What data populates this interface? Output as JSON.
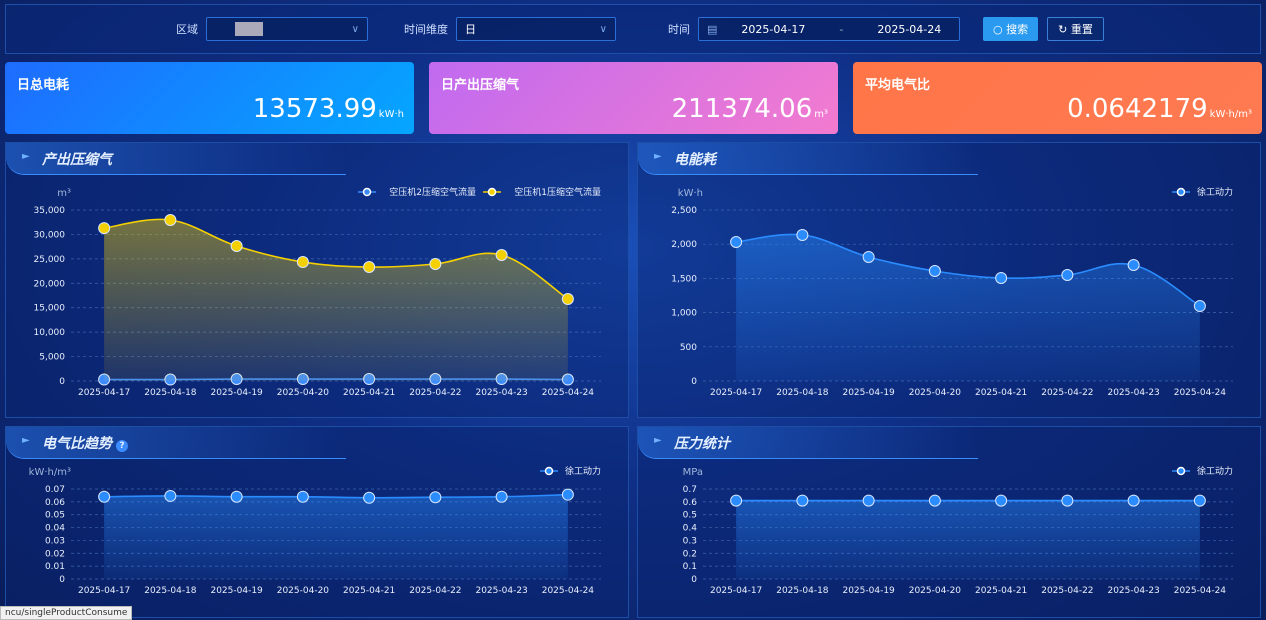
{
  "filters": {
    "region_label": "区域",
    "time_dim_label": "时间维度",
    "time_dim_value": "日",
    "time_label": "时间",
    "date_start": "2025-04-17",
    "date_sep": "-",
    "date_end": "2025-04-24",
    "search_label": "搜索",
    "reset_label": "重置"
  },
  "kpis": [
    {
      "title": "日总电耗",
      "value": "13573.99",
      "unit": "kW·h"
    },
    {
      "title": "日产出压缩气",
      "value": "211374.06",
      "unit": "m³"
    },
    {
      "title": "平均电气比",
      "value": "0.0642179",
      "unit": "kW·h/m³"
    }
  ],
  "status_text": "ncu/singleProductConsume",
  "chart_data": [
    {
      "title": "产出压缩气",
      "type": "line",
      "ylabel": "m³",
      "ylim": [
        0,
        35000
      ],
      "yticks": [
        "0",
        "5,000",
        "10,000",
        "15,000",
        "20,000",
        "25,000",
        "30,000",
        "35,000"
      ],
      "grid": true,
      "legend": "top-right",
      "categories": [
        "2025-04-17",
        "2025-04-18",
        "2025-04-19",
        "2025-04-20",
        "2025-04-21",
        "2025-04-22",
        "2025-04-23",
        "2025-04-24"
      ],
      "series": [
        {
          "name": "空压机2压缩空气流量",
          "color": "#3c8cff",
          "area": false,
          "values": [
            300,
            300,
            400,
            400,
            400,
            400,
            400,
            300
          ]
        },
        {
          "name": "空压机1压缩空气流量",
          "color": "#f5d000",
          "area": true,
          "values": [
            31300,
            32950,
            27630,
            24350,
            23330,
            23950,
            25790,
            16780
          ]
        }
      ]
    },
    {
      "title": "电能耗",
      "type": "line",
      "ylabel": "kW·h",
      "ylim": [
        0,
        2500
      ],
      "yticks": [
        "0",
        "500",
        "1,000",
        "1,500",
        "2,000",
        "2,500"
      ],
      "grid": true,
      "legend": "top-right",
      "categories": [
        "2025-04-17",
        "2025-04-18",
        "2025-04-19",
        "2025-04-20",
        "2025-04-21",
        "2025-04-22",
        "2025-04-23",
        "2025-04-24"
      ],
      "series": [
        {
          "name": "徐工动力",
          "color": "#2a8cff",
          "area": true,
          "values": [
            2032,
            2135,
            1813,
            1608,
            1506,
            1550,
            1696,
            1096
          ]
        }
      ]
    },
    {
      "title": "电气比趋势",
      "help": "?",
      "type": "line",
      "ylabel": "kW·h/m³",
      "ylim": [
        0,
        0.07
      ],
      "yticks": [
        "0",
        "0.01",
        "0.02",
        "0.03",
        "0.04",
        "0.05",
        "0.06",
        "0.07"
      ],
      "grid": true,
      "legend": "top-right",
      "categories": [
        "2025-04-17",
        "2025-04-18",
        "2025-04-19",
        "2025-04-20",
        "2025-04-21",
        "2025-04-22",
        "2025-04-23",
        "2025-04-24"
      ],
      "series": [
        {
          "name": "徐工动力",
          "color": "#2a8cff",
          "area": true,
          "values": [
            0.064,
            0.0646,
            0.064,
            0.064,
            0.0632,
            0.0636,
            0.064,
            0.0656
          ]
        }
      ]
    },
    {
      "title": "压力统计",
      "type": "line",
      "ylabel": "MPa",
      "ylim": [
        0,
        0.7
      ],
      "yticks": [
        "0",
        "0.1",
        "0.2",
        "0.3",
        "0.4",
        "0.5",
        "0.6",
        "0.7"
      ],
      "grid": true,
      "legend": "top-right",
      "categories": [
        "2025-04-17",
        "2025-04-18",
        "2025-04-19",
        "2025-04-20",
        "2025-04-21",
        "2025-04-22",
        "2025-04-23",
        "2025-04-24"
      ],
      "series": [
        {
          "name": "徐工动力",
          "color": "#2a8cff",
          "area": true,
          "values": [
            0.61,
            0.61,
            0.61,
            0.61,
            0.61,
            0.61,
            0.61,
            0.61
          ]
        }
      ]
    }
  ]
}
